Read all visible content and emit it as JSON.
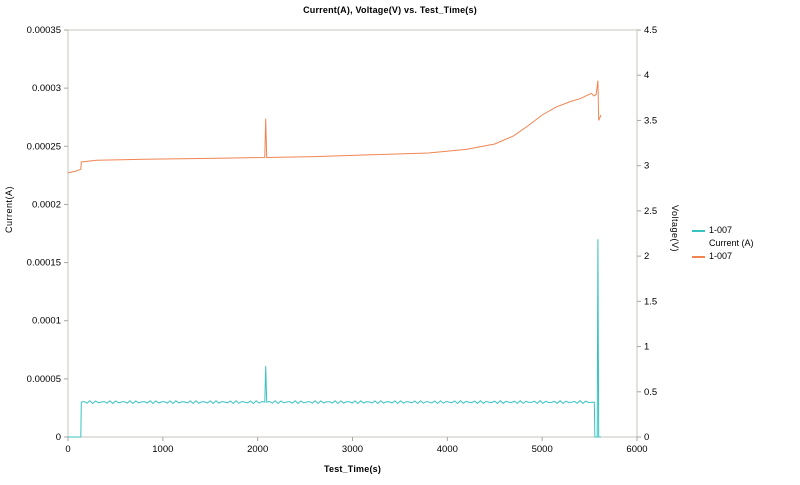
{
  "chart_data": {
    "type": "line",
    "title": "Current(A), Voltage(V) vs. Test_Time(s)",
    "xlabel": "Test_Time(s)",
    "ylabel_left": "Current(A)",
    "ylabel_right": "Voltage(V)",
    "xlim": [
      0,
      6000
    ],
    "ylim_left": [
      0,
      0.00035
    ],
    "ylim_right": [
      0,
      4.5
    ],
    "x_ticks": [
      0,
      1000,
      2000,
      3000,
      4000,
      5000,
      6000
    ],
    "y_ticks_left": [
      0,
      5e-05,
      0.0001,
      0.00015,
      0.0002,
      0.00025,
      0.0003,
      0.00035
    ],
    "y_ticks_right": [
      0,
      0.5,
      1,
      1.5,
      2,
      2.5,
      3,
      3.5,
      4,
      4.5
    ],
    "grid": false,
    "legend_position": "right",
    "frame_color": "#c9c5bc",
    "tick_color": "#aaa69d",
    "legend": {
      "entries": [
        {
          "line1": "1-007",
          "line2": "Current (A)",
          "color": "#38C2C2"
        },
        {
          "line1": "1-007",
          "line2": "",
          "color": "#F08552"
        }
      ]
    },
    "series": [
      {
        "name": "1-007 Current (A)",
        "axis": "left",
        "color": "#38C2C2",
        "noise_amplitude": 1.2e-06,
        "points": [
          [
            0,
            0
          ],
          [
            135,
            0
          ],
          [
            140,
            3e-05
          ],
          [
            2075,
            3e-05
          ],
          [
            2085,
            6.1e-05
          ],
          [
            2095,
            3e-05
          ],
          [
            5550,
            3e-05
          ],
          [
            5556,
            0
          ],
          [
            5580,
            0
          ],
          [
            5588,
            0.00017
          ],
          [
            5596,
            0
          ],
          [
            5620,
            0
          ]
        ]
      },
      {
        "name": "1-007",
        "axis": "right",
        "color": "#F08552",
        "points": [
          [
            0,
            2.92
          ],
          [
            80,
            2.94
          ],
          [
            135,
            2.96
          ],
          [
            140,
            3.04
          ],
          [
            300,
            3.06
          ],
          [
            800,
            3.07
          ],
          [
            1500,
            3.08
          ],
          [
            2075,
            3.09
          ],
          [
            2085,
            3.52
          ],
          [
            2095,
            3.09
          ],
          [
            2600,
            3.1
          ],
          [
            3200,
            3.12
          ],
          [
            3800,
            3.14
          ],
          [
            4200,
            3.18
          ],
          [
            4500,
            3.24
          ],
          [
            4700,
            3.33
          ],
          [
            4850,
            3.44
          ],
          [
            5000,
            3.56
          ],
          [
            5150,
            3.65
          ],
          [
            5300,
            3.71
          ],
          [
            5400,
            3.74
          ],
          [
            5480,
            3.78
          ],
          [
            5520,
            3.8
          ],
          [
            5545,
            3.77
          ],
          [
            5570,
            3.79
          ],
          [
            5588,
            3.94
          ],
          [
            5596,
            3.5
          ],
          [
            5620,
            3.56
          ]
        ]
      }
    ]
  }
}
